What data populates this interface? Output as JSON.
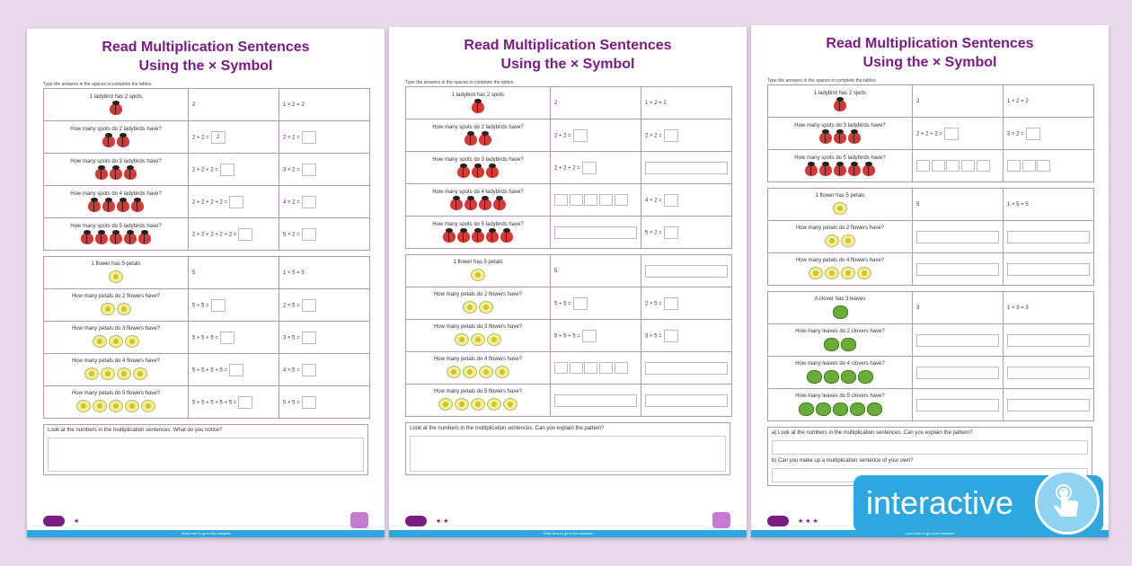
{
  "title_line1": "Read Multiplication Sentences",
  "title_line2": "Using the × Symbol",
  "instruction": "Type the answers in the spaces to complete the tables.",
  "badge": "interactive",
  "p1": {
    "ladybird": {
      "head": [
        "1 ladybird has 2 spots",
        "2",
        "1 × 2 = 2"
      ],
      "rows": [
        {
          "q": "How many spots do 2 ladybirds have?",
          "m": "2 + 2 =",
          "mval": "2",
          "r": "2 × 2 ="
        },
        {
          "q": "How many spots do 3 ladybirds have?",
          "m": "2 + 2 + 2 =",
          "r": "3 × 2 ="
        },
        {
          "q": "How many spots do 4 ladybirds have?",
          "m": "2 + 2 + 2 + 2 =",
          "r": "4 × 2 ="
        },
        {
          "q": "How many spots do 5 ladybirds have?",
          "m": "2 + 2 + 2 + 2 + 2 =",
          "r": "5 × 2 ="
        }
      ]
    },
    "flower": {
      "head": [
        "1 flower has 5 petals",
        "5",
        "1 × 5 = 5"
      ],
      "rows": [
        {
          "q": "How many petals do 2 flowers have?",
          "m": "5 + 5 =",
          "r": "2 × 5 ="
        },
        {
          "q": "How many petals do 3 flowers have?",
          "m": "5 + 5 + 5 =",
          "r": "3 × 5 ="
        },
        {
          "q": "How many petals do 4 flowers have?",
          "m": "5 + 5 + 5 + 5 =",
          "r": "4 × 5 ="
        },
        {
          "q": "How many petals do 5 flowers have?",
          "m": "5 + 5 + 5 + 5 + 5 =",
          "r": "5 × 5 ="
        }
      ]
    },
    "question": "Look at the numbers in the multiplication sentences. What do you notice?",
    "stars": "★",
    "footer": "Click here to go to the answers"
  },
  "p2": {
    "ladybird": {
      "head": [
        "1 ladybird has 2 spots",
        "2",
        "1 × 2 = 2"
      ],
      "rows": [
        {
          "q": "How many spots do 2 ladybirds have?",
          "m": "2 + 2 =",
          "r": "2 × 2 ="
        },
        {
          "q": "How many spots do 3 ladybirds have?",
          "m": "2 + 2 + 2 =",
          "r": ""
        },
        {
          "q": "How many spots do 4 ladybirds have?",
          "m": "",
          "r": "4 × 2 ="
        },
        {
          "q": "How many spots do 5 ladybirds have?",
          "m": "",
          "r": "5 × 2 ="
        }
      ]
    },
    "flower": {
      "head": [
        "1 flower has 5 petals",
        "5",
        ""
      ],
      "rows": [
        {
          "q": "How many petals do 2 flowers have?",
          "m": "5 + 5 =",
          "r": "2 × 5 ="
        },
        {
          "q": "How many petals do 3 flowers have?",
          "m": "5 + 5 + 5 =",
          "r": "3 × 5 ="
        },
        {
          "q": "How many petals do 4 flowers have?",
          "m": "",
          "r": ""
        },
        {
          "q": "How many petals do 5 flowers have?",
          "m": "",
          "r": ""
        }
      ]
    },
    "question": "Look at the numbers in the multiplication sentences. Can you explain the pattern?",
    "stars": "★ ★",
    "footer": "Click here to go to the answers"
  },
  "p3": {
    "ladybird": {
      "head": [
        "1 ladybird has 2 spots",
        "2",
        "1 × 2 = 2"
      ],
      "rows": [
        {
          "q": "How many spots do 3 ladybirds have?",
          "m": "2 + 2 + 2 =",
          "r": "3 × 2 ="
        },
        {
          "q": "How many spots do 5 ladybirds have?",
          "m": "",
          "r": ""
        }
      ]
    },
    "flower": {
      "head": [
        "1 flower has 5 petals",
        "5",
        "1 × 5 = 5"
      ],
      "rows": [
        {
          "q": "How many petals do 2 flowers have?",
          "m": "",
          "r": ""
        },
        {
          "q": "How many petals do 4 flowers have?",
          "m": "",
          "r": ""
        }
      ]
    },
    "clover": {
      "head": [
        "A clover has 3 leaves",
        "3",
        "1 × 3 = 3"
      ],
      "rows": [
        {
          "q": "How many leaves do 2 clovers have?",
          "m": "",
          "r": ""
        },
        {
          "q": "How many leaves do 4 clovers have?",
          "m": "",
          "r": ""
        },
        {
          "q": "How many leaves do 5 clovers have?",
          "m": "",
          "r": ""
        }
      ]
    },
    "question_a": "a) Look at the numbers in the multiplication sentences. Can you explain the pattern?",
    "question_b": "b) Can you make up a multiplication sentence of your own?",
    "stars": "★ ★ ★",
    "footer": "Click here to go to the answers"
  }
}
